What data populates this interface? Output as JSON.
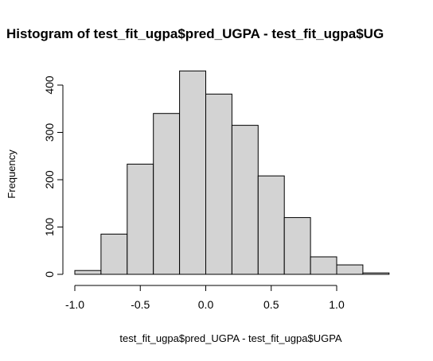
{
  "chart_data": {
    "type": "bar",
    "title": "Histogram of test_fit_ugpa$pred_UGPA - test_fit_ugpa$UG",
    "xlabel": "test_fit_ugpa$pred_UGPA - test_fit_ugpa$UGPA",
    "ylabel": "Frequency",
    "bin_edges": [
      -1.0,
      -0.8,
      -0.6,
      -0.4,
      -0.2,
      0.0,
      0.2,
      0.4,
      0.6,
      0.8,
      1.0,
      1.2,
      1.4
    ],
    "values": [
      8,
      85,
      233,
      340,
      430,
      381,
      315,
      208,
      120,
      37,
      20,
      3
    ],
    "xlim": [
      -1.0,
      1.4
    ],
    "ylim": [
      0,
      430
    ],
    "xticks": [
      -1.0,
      -0.5,
      0.0,
      0.5,
      1.0
    ],
    "xtick_labels": [
      "-1.0",
      "-0.5",
      "0.0",
      "0.5",
      "1.0"
    ],
    "yticks": [
      0,
      100,
      200,
      300,
      400
    ],
    "ytick_labels": [
      "0",
      "100",
      "200",
      "300",
      "400"
    ],
    "bar_fill": "#d3d3d3",
    "bar_stroke": "#000000",
    "grid": false,
    "legend": false
  }
}
